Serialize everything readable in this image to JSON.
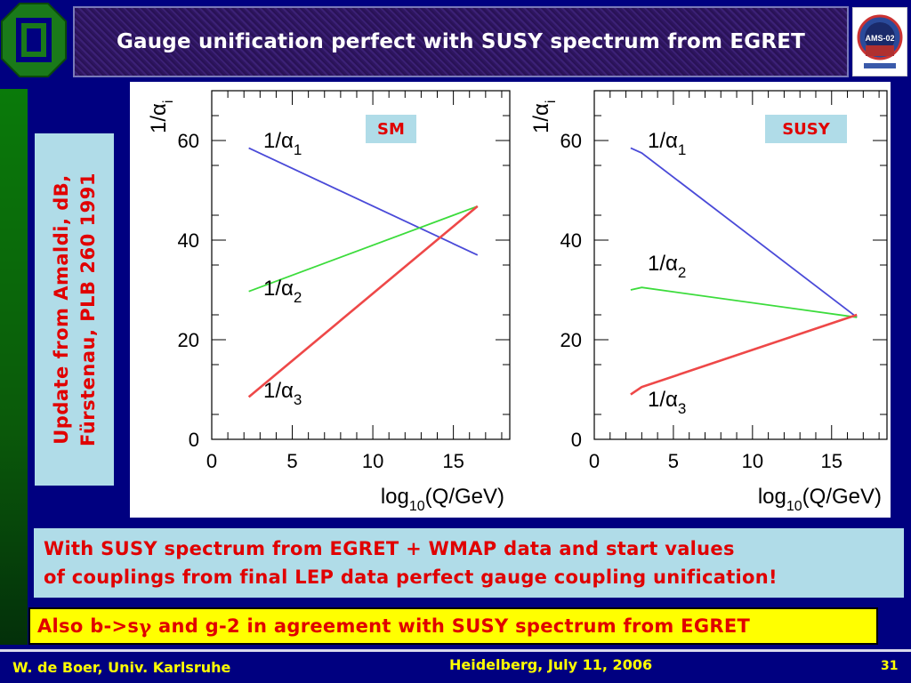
{
  "slide": {
    "title": "Gauge unification perfect with SUSY spectrum from EGRET",
    "reference_line1": "Update from Amaldi, dB,",
    "reference_line2": "Fürstenau, PLB 260 1991",
    "info_line1": "With SUSY spectrum from EGRET + WMAP data and start values",
    "info_line2": "of couplings from final LEP data perfect gauge coupling unification!",
    "note_prefix": "Also b->s",
    "note_greek": "γ",
    "note_suffix": " and g-2 in agreement with SUSY spectrum from EGRET",
    "footer_author": "W. de Boer, Univ. Karlsruhe",
    "footer_event": "Heidelberg, July 11, 2006",
    "page_number": "31"
  },
  "logos": {
    "left": "university-logo",
    "right": "AMS-02"
  },
  "colors": {
    "background": "#000080",
    "alpha1": "#4a4ad8",
    "alpha2": "#3cdc3c",
    "alpha3": "#ee4848",
    "label_box": "#b0dce8",
    "accent_text": "#e00000",
    "footer_text": "#ffff00"
  },
  "chart_data": [
    {
      "type": "line",
      "tag": "SM",
      "xlabel": "log10(Q/GeV)",
      "ylabel": "1/α_i",
      "xlim": [
        0,
        18.5
      ],
      "ylim": [
        0,
        70
      ],
      "xticks": [
        0,
        5,
        10,
        15
      ],
      "yticks": [
        0,
        20,
        40,
        60
      ],
      "grid": false,
      "series": [
        {
          "name": "1/α1",
          "color_key": "alpha1",
          "x": [
            2.3,
            16.5
          ],
          "y": [
            58.5,
            37
          ]
        },
        {
          "name": "1/α2",
          "color_key": "alpha2",
          "x": [
            2.3,
            16.5
          ],
          "y": [
            29.7,
            46.8
          ]
        },
        {
          "name": "1/α3",
          "color_key": "alpha3",
          "x": [
            2.3,
            16.5
          ],
          "y": [
            8.5,
            46.8
          ]
        }
      ]
    },
    {
      "type": "line",
      "tag": "SUSY",
      "xlabel": "log10(Q/GeV)",
      "ylabel": "1/α_i",
      "xlim": [
        0,
        18.5
      ],
      "ylim": [
        0,
        70
      ],
      "xticks": [
        0,
        5,
        10,
        15
      ],
      "yticks": [
        0,
        20,
        40,
        60
      ],
      "grid": false,
      "series": [
        {
          "name": "1/α1",
          "color_key": "alpha1",
          "x": [
            2.3,
            3,
            16.6
          ],
          "y": [
            58.5,
            57.5,
            24.5
          ]
        },
        {
          "name": "1/α2",
          "color_key": "alpha2",
          "x": [
            2.3,
            3,
            16.6
          ],
          "y": [
            30,
            30.5,
            24.5
          ]
        },
        {
          "name": "1/α3",
          "color_key": "alpha3",
          "x": [
            2.3,
            3,
            16.6
          ],
          "y": [
            9,
            10.5,
            25
          ]
        }
      ]
    }
  ]
}
